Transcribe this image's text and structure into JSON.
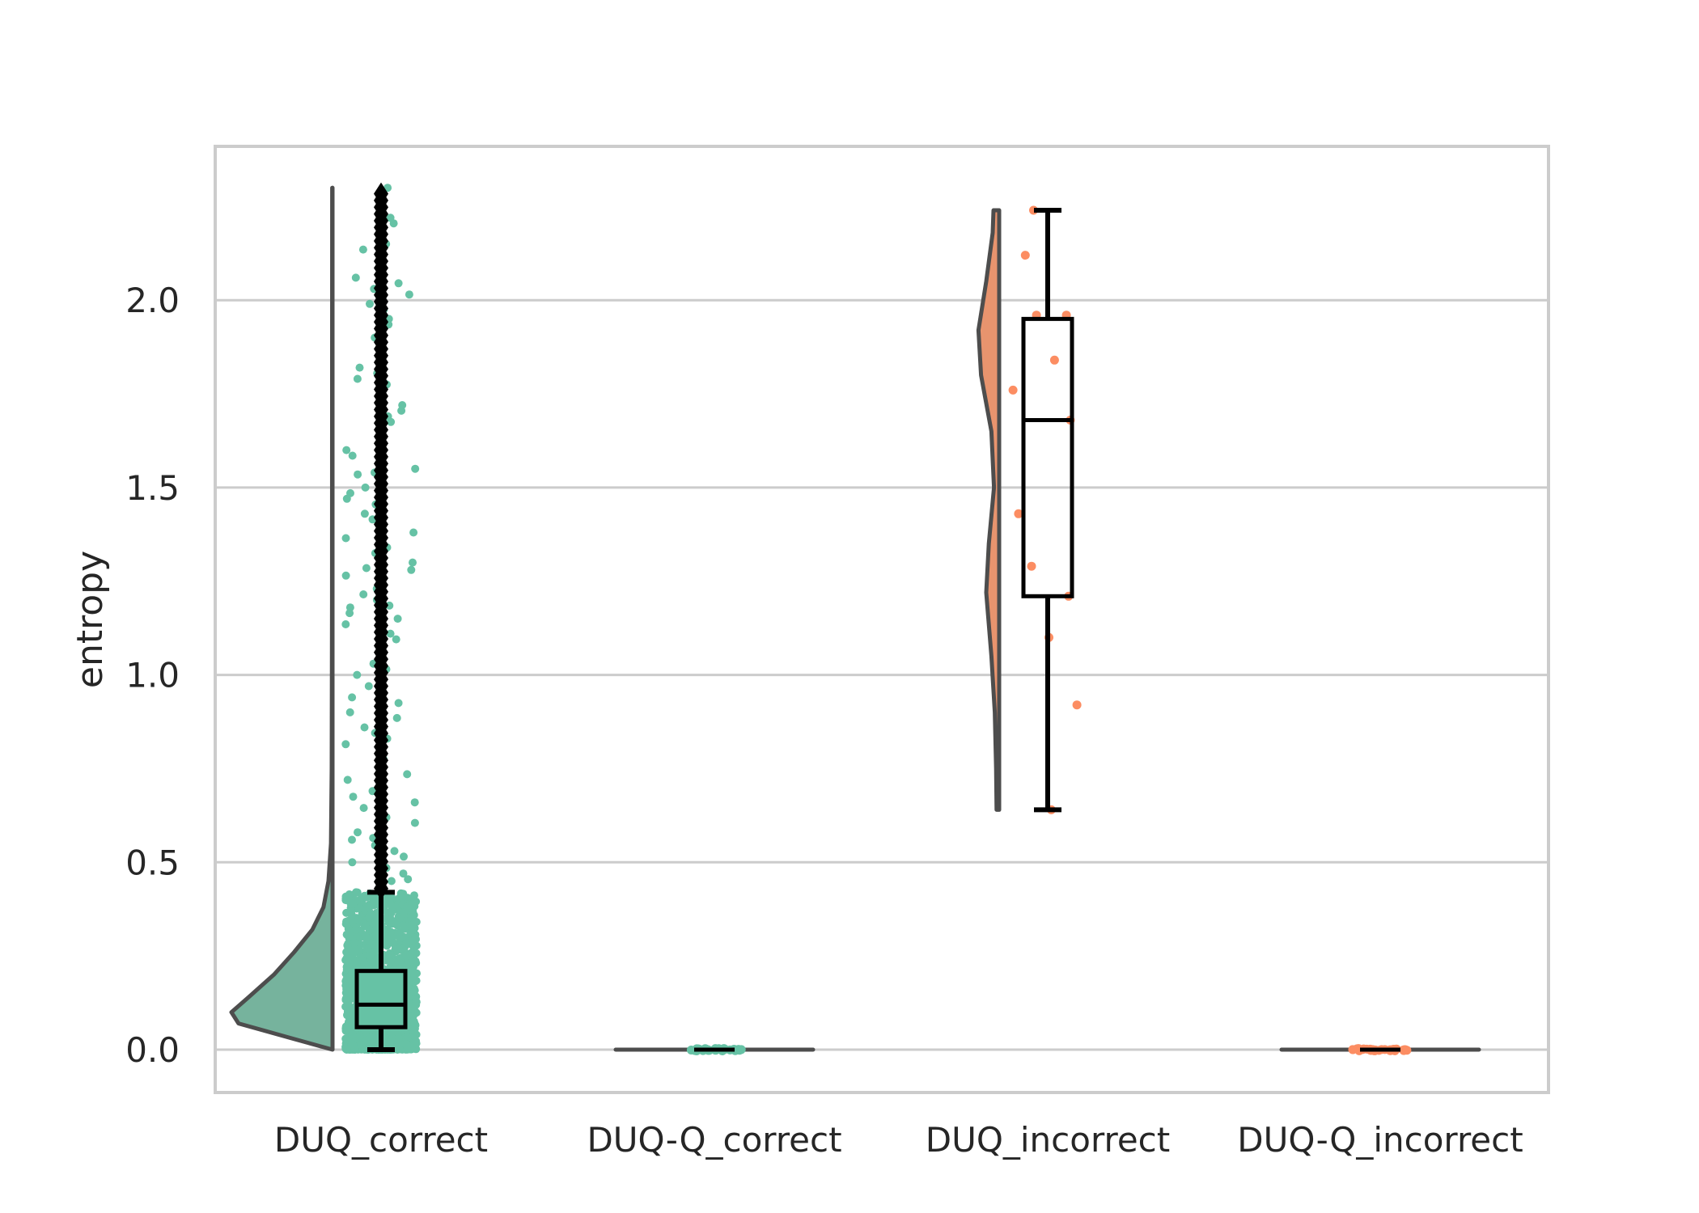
{
  "chart_data": {
    "type": "raincloud",
    "title": "",
    "xlabel": "",
    "ylabel": "entropy",
    "ylim": [
      -0.11,
      2.42
    ],
    "yticks": [
      "0.0",
      "0.5",
      "1.0",
      "1.5",
      "2.0"
    ],
    "grid": "horizontal",
    "legend": "none",
    "categories": [
      "DUQ_correct",
      "DUQ-Q_correct",
      "DUQ_incorrect",
      "DUQ-Q_incorrect"
    ],
    "colors": {
      "green": "#66c2a5",
      "green_violin": "#76b39d",
      "orange": "#fc8d62",
      "orange_violin": "#e8946e",
      "outline": "#4d4d4d",
      "box": "#000000",
      "grid": "#cccccc"
    },
    "groups": [
      {
        "category": "DUQ_correct",
        "color": "green",
        "violin_color": "green_violin",
        "box": {
          "q1": 0.06,
          "median": 0.12,
          "q3": 0.21,
          "whisker_low": 0.0,
          "whisker_high": 0.42
        },
        "outlier_range": [
          0.43,
          2.3
        ],
        "points_dense_range": [
          0.0,
          0.42
        ],
        "points_sparse": [
          2.3,
          2.22,
          2.15,
          2.06,
          2.03,
          1.99,
          1.95,
          1.9,
          1.82,
          1.79,
          1.72,
          1.69,
          1.6,
          1.55,
          1.54,
          1.5,
          1.47,
          1.43,
          1.38,
          1.34,
          1.3,
          1.28,
          1.23,
          1.2,
          1.18,
          1.15,
          1.11,
          1.03,
          1.0,
          0.97,
          0.94,
          0.9,
          0.86,
          0.83,
          0.79,
          0.75,
          0.72,
          0.69,
          0.66,
          0.62,
          0.58,
          0.56,
          0.53,
          0.5,
          0.47,
          0.45
        ],
        "violin": [
          [
            0.0,
            0.0
          ],
          [
            0.03,
            0.4
          ],
          [
            0.07,
            0.93
          ],
          [
            0.1,
            1.0
          ],
          [
            0.14,
            0.83
          ],
          [
            0.2,
            0.58
          ],
          [
            0.26,
            0.38
          ],
          [
            0.32,
            0.2
          ],
          [
            0.38,
            0.09
          ],
          [
            0.45,
            0.04
          ],
          [
            0.55,
            0.015
          ],
          [
            0.75,
            0.008
          ],
          [
            1.2,
            0.005
          ],
          [
            2.3,
            0.003
          ]
        ]
      },
      {
        "category": "DUQ-Q_correct",
        "color": "green",
        "violin_color": "green_violin",
        "box": {
          "q1": 0.0,
          "median": 0.0,
          "q3": 0.0,
          "whisker_low": 0.0,
          "whisker_high": 0.0
        },
        "points_at": 0.0,
        "violin": "flat"
      },
      {
        "category": "DUQ_incorrect",
        "color": "orange",
        "violin_color": "orange_violin",
        "box": {
          "q1": 1.21,
          "median": 1.68,
          "q3": 1.95,
          "whisker_low": 0.64,
          "whisker_high": 2.24
        },
        "points": [
          2.24,
          2.12,
          1.96,
          1.96,
          1.84,
          1.76,
          1.68,
          1.43,
          1.29,
          1.21,
          1.1,
          0.92,
          0.64
        ],
        "violin": [
          [
            0.64,
            0.1
          ],
          [
            0.75,
            0.12
          ],
          [
            0.9,
            0.17
          ],
          [
            1.05,
            0.3
          ],
          [
            1.22,
            0.5
          ],
          [
            1.35,
            0.4
          ],
          [
            1.5,
            0.2
          ],
          [
            1.65,
            0.3
          ],
          [
            1.8,
            0.7
          ],
          [
            1.92,
            0.8
          ],
          [
            2.05,
            0.5
          ],
          [
            2.18,
            0.25
          ],
          [
            2.24,
            0.22
          ]
        ]
      },
      {
        "category": "DUQ-Q_incorrect",
        "color": "orange",
        "violin_color": "orange_violin",
        "box": {
          "q1": 0.0,
          "median": 0.0,
          "q3": 0.0,
          "whisker_low": 0.0,
          "whisker_high": 0.0
        },
        "points_at": 0.0,
        "violin": "flat"
      }
    ]
  }
}
